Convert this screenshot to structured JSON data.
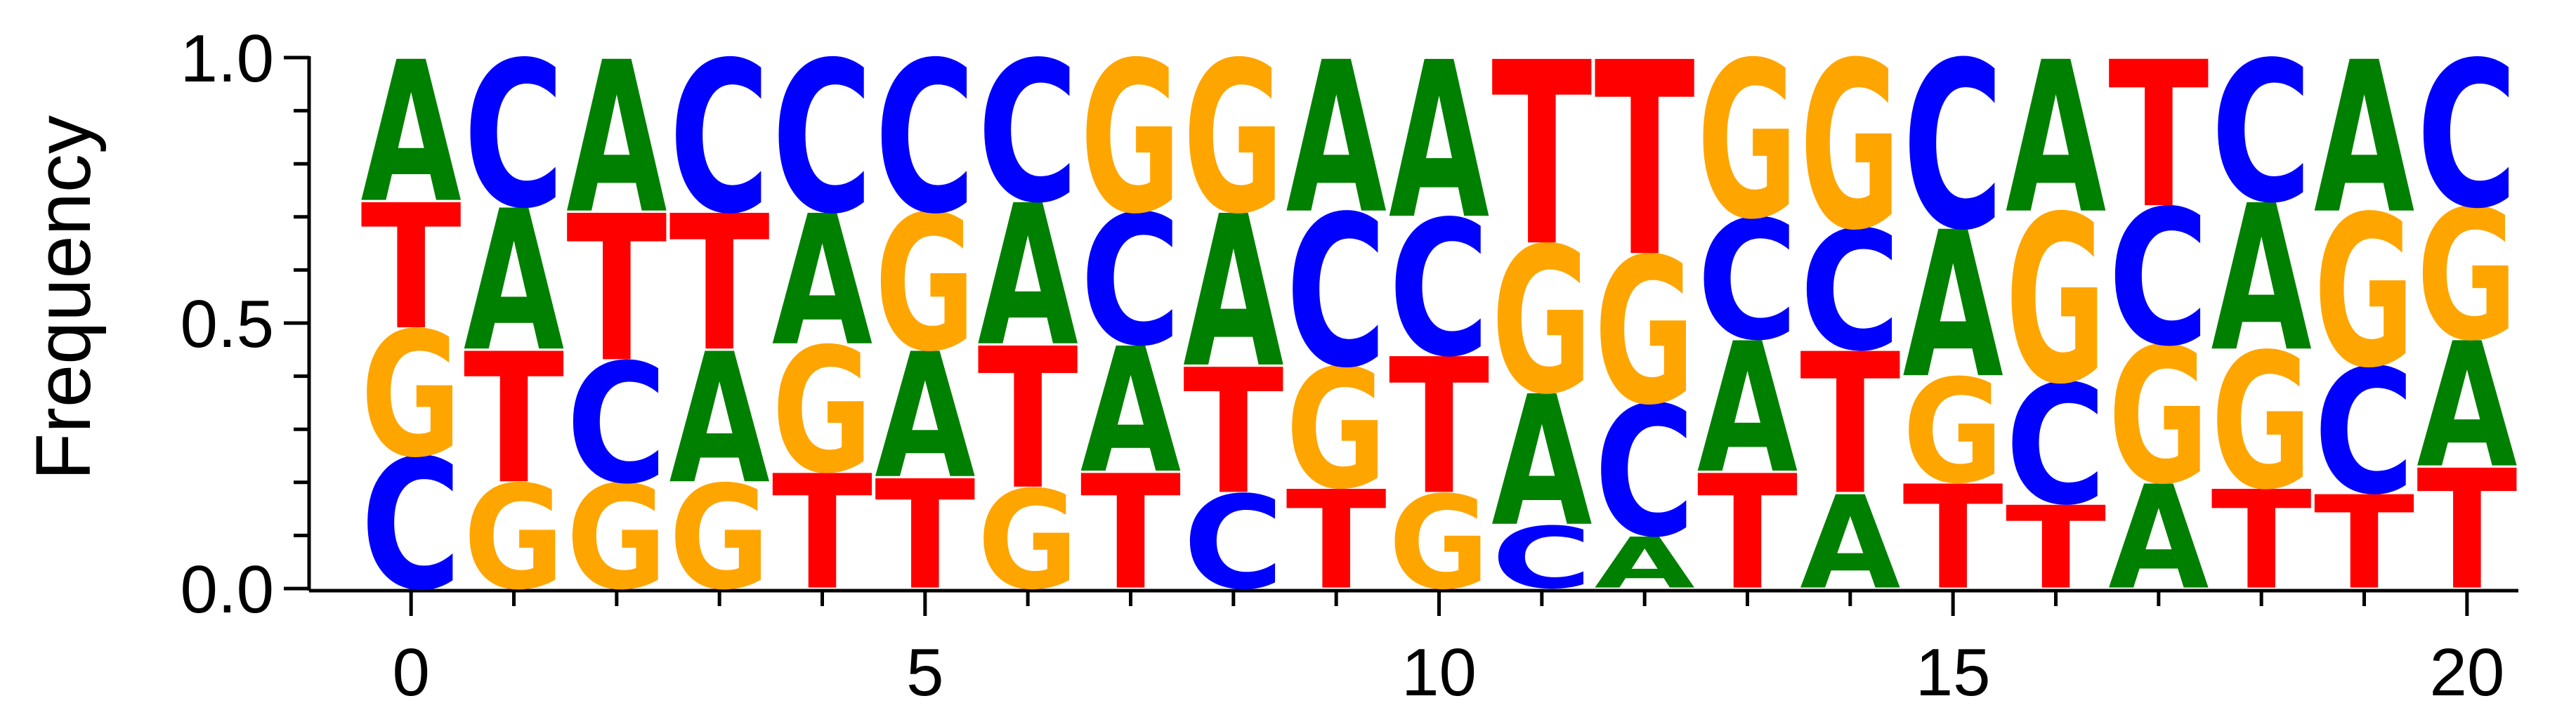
{
  "chart_data": {
    "type": "sequence-logo",
    "ylabel": "Frequency",
    "xlabel": "",
    "ylim": [
      0,
      1.0
    ],
    "xlim": [
      -0.5,
      20.5
    ],
    "yticks": [
      0.0,
      0.5,
      1.0
    ],
    "ytick_labels": [
      "0.0",
      "0.5",
      "1.0"
    ],
    "xticks": [
      0,
      5,
      10,
      15,
      20
    ],
    "xtick_labels": [
      "0",
      "5",
      "10",
      "15",
      "20"
    ],
    "colors": {
      "A": "#008000",
      "C": "#0000ff",
      "G": "#ffa500",
      "T": "#ff0000"
    },
    "positions": [
      {
        "x": 0,
        "stack": [
          {
            "base": "C",
            "freq": 0.25
          },
          {
            "base": "G",
            "freq": 0.24
          },
          {
            "base": "T",
            "freq": 0.24
          },
          {
            "base": "A",
            "freq": 0.27
          }
        ]
      },
      {
        "x": 1,
        "stack": [
          {
            "base": "G",
            "freq": 0.2
          },
          {
            "base": "T",
            "freq": 0.25
          },
          {
            "base": "A",
            "freq": 0.27
          },
          {
            "base": "C",
            "freq": 0.28
          }
        ]
      },
      {
        "x": 2,
        "stack": [
          {
            "base": "G",
            "freq": 0.2
          },
          {
            "base": "C",
            "freq": 0.23
          },
          {
            "base": "T",
            "freq": 0.28
          },
          {
            "base": "A",
            "freq": 0.29
          }
        ]
      },
      {
        "x": 3,
        "stack": [
          {
            "base": "G",
            "freq": 0.2
          },
          {
            "base": "A",
            "freq": 0.25
          },
          {
            "base": "T",
            "freq": 0.26
          },
          {
            "base": "C",
            "freq": 0.29
          }
        ]
      },
      {
        "x": 4,
        "stack": [
          {
            "base": "T",
            "freq": 0.22
          },
          {
            "base": "G",
            "freq": 0.24
          },
          {
            "base": "A",
            "freq": 0.25
          },
          {
            "base": "C",
            "freq": 0.29
          }
        ]
      },
      {
        "x": 5,
        "stack": [
          {
            "base": "T",
            "freq": 0.21
          },
          {
            "base": "A",
            "freq": 0.24
          },
          {
            "base": "G",
            "freq": 0.26
          },
          {
            "base": "C",
            "freq": 0.29
          }
        ]
      },
      {
        "x": 6,
        "stack": [
          {
            "base": "G",
            "freq": 0.19
          },
          {
            "base": "T",
            "freq": 0.27
          },
          {
            "base": "A",
            "freq": 0.27
          },
          {
            "base": "C",
            "freq": 0.27
          }
        ]
      },
      {
        "x": 7,
        "stack": [
          {
            "base": "T",
            "freq": 0.22
          },
          {
            "base": "A",
            "freq": 0.24
          },
          {
            "base": "C",
            "freq": 0.25
          },
          {
            "base": "G",
            "freq": 0.29
          }
        ]
      },
      {
        "x": 8,
        "stack": [
          {
            "base": "C",
            "freq": 0.18
          },
          {
            "base": "T",
            "freq": 0.24
          },
          {
            "base": "A",
            "freq": 0.29
          },
          {
            "base": "G",
            "freq": 0.29
          }
        ]
      },
      {
        "x": 9,
        "stack": [
          {
            "base": "T",
            "freq": 0.19
          },
          {
            "base": "G",
            "freq": 0.23
          },
          {
            "base": "C",
            "freq": 0.29
          },
          {
            "base": "A",
            "freq": 0.29
          }
        ]
      },
      {
        "x": 10,
        "stack": [
          {
            "base": "G",
            "freq": 0.18
          },
          {
            "base": "T",
            "freq": 0.26
          },
          {
            "base": "C",
            "freq": 0.26
          },
          {
            "base": "A",
            "freq": 0.3
          }
        ]
      },
      {
        "x": 11,
        "stack": [
          {
            "base": "C",
            "freq": 0.12
          },
          {
            "base": "A",
            "freq": 0.25
          },
          {
            "base": "G",
            "freq": 0.28
          },
          {
            "base": "T",
            "freq": 0.35
          }
        ]
      },
      {
        "x": 12,
        "stack": [
          {
            "base": "A",
            "freq": 0.1
          },
          {
            "base": "C",
            "freq": 0.25
          },
          {
            "base": "G",
            "freq": 0.28
          },
          {
            "base": "T",
            "freq": 0.37
          }
        ]
      },
      {
        "x": 13,
        "stack": [
          {
            "base": "T",
            "freq": 0.22
          },
          {
            "base": "A",
            "freq": 0.25
          },
          {
            "base": "C",
            "freq": 0.23
          },
          {
            "base": "G",
            "freq": 0.3
          }
        ]
      },
      {
        "x": 14,
        "stack": [
          {
            "base": "A",
            "freq": 0.18
          },
          {
            "base": "T",
            "freq": 0.27
          },
          {
            "base": "C",
            "freq": 0.23
          },
          {
            "base": "G",
            "freq": 0.32
          }
        ]
      },
      {
        "x": 15,
        "stack": [
          {
            "base": "T",
            "freq": 0.2
          },
          {
            "base": "G",
            "freq": 0.2
          },
          {
            "base": "A",
            "freq": 0.28
          },
          {
            "base": "C",
            "freq": 0.32
          }
        ]
      },
      {
        "x": 16,
        "stack": [
          {
            "base": "T",
            "freq": 0.16
          },
          {
            "base": "C",
            "freq": 0.23
          },
          {
            "base": "G",
            "freq": 0.32
          },
          {
            "base": "A",
            "freq": 0.29
          }
        ]
      },
      {
        "x": 17,
        "stack": [
          {
            "base": "A",
            "freq": 0.2
          },
          {
            "base": "G",
            "freq": 0.26
          },
          {
            "base": "C",
            "freq": 0.26
          },
          {
            "base": "T",
            "freq": 0.28
          }
        ]
      },
      {
        "x": 18,
        "stack": [
          {
            "base": "T",
            "freq": 0.19
          },
          {
            "base": "G",
            "freq": 0.26
          },
          {
            "base": "A",
            "freq": 0.28
          },
          {
            "base": "C",
            "freq": 0.27
          }
        ]
      },
      {
        "x": 19,
        "stack": [
          {
            "base": "T",
            "freq": 0.18
          },
          {
            "base": "C",
            "freq": 0.24
          },
          {
            "base": "G",
            "freq": 0.29
          },
          {
            "base": "A",
            "freq": 0.29
          }
        ]
      },
      {
        "x": 20,
        "stack": [
          {
            "base": "T",
            "freq": 0.23
          },
          {
            "base": "A",
            "freq": 0.24
          },
          {
            "base": "G",
            "freq": 0.25
          },
          {
            "base": "C",
            "freq": 0.28
          }
        ]
      }
    ]
  }
}
